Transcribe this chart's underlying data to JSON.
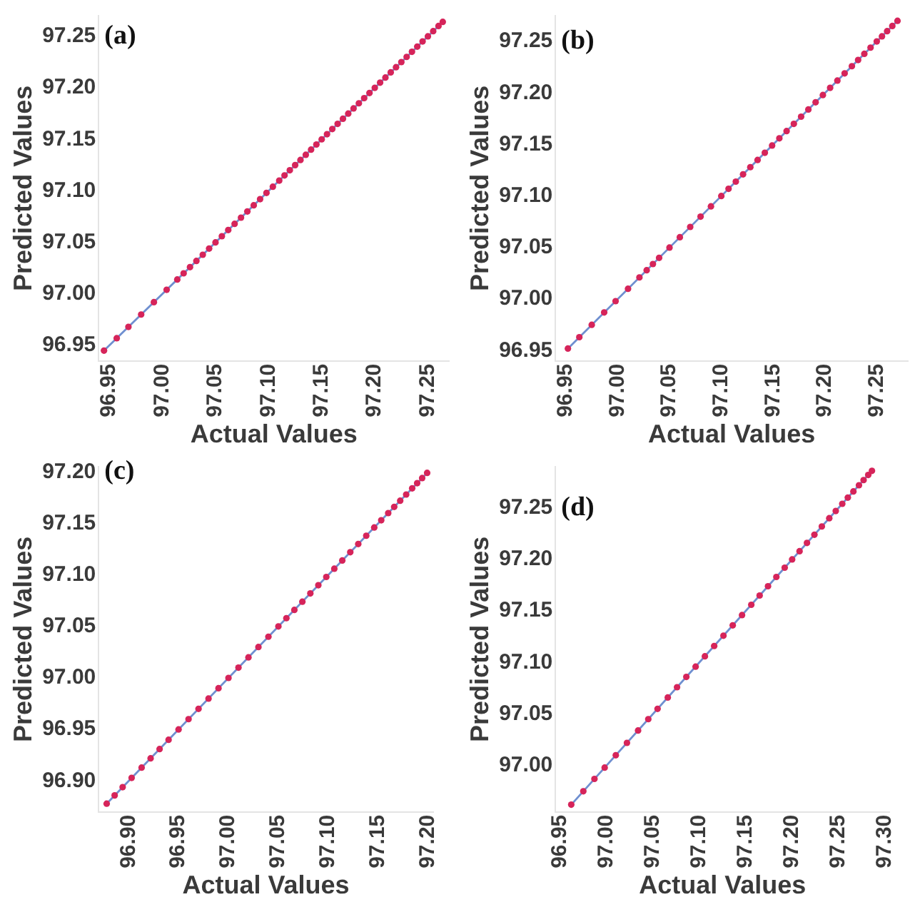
{
  "chart_data": [
    {
      "type": "scatter",
      "title": "(a)",
      "xlabel": "Actual Values",
      "ylabel": "Predicted Values",
      "xlim": [
        96.94,
        97.27
      ],
      "ylim": [
        96.935,
        97.27
      ],
      "xticks": [
        96.95,
        {
          "value": 97,
          "label": "97.00"
        },
        97.05,
        {
          "value": 97.1,
          "label": "97.10"
        },
        97.15,
        {
          "value": 97.2,
          "label": "97.20"
        },
        97.25
      ],
      "yticks": [
        96.95,
        {
          "value": 97,
          "label": "97.00"
        },
        97.05,
        {
          "value": 97.1,
          "label": "97.10"
        },
        97.15,
        {
          "value": 97.2,
          "label": "97.20"
        },
        97.25
      ],
      "grid": false,
      "legend": false,
      "series": [
        {
          "type": "line",
          "marker": "none",
          "color": "#6f8fd0",
          "x": [
            96.945,
            97.264
          ],
          "values": [
            96.945,
            97.264
          ]
        },
        {
          "marker": "circle",
          "color": "#d6245a",
          "x": [
            96.945,
            96.957,
            96.968,
            96.98,
            96.992,
            97.004,
            97.014,
            97.02,
            97.026,
            97.032,
            97.038,
            97.044,
            97.05,
            97.056,
            97.062,
            97.068,
            97.074,
            97.08,
            97.086,
            97.092,
            97.098,
            97.104,
            97.11,
            97.115,
            97.12,
            97.125,
            97.13,
            97.135,
            97.14,
            97.145,
            97.15,
            97.155,
            97.16,
            97.165,
            97.17,
            97.175,
            97.18,
            97.185,
            97.19,
            97.195,
            97.2,
            97.205,
            97.21,
            97.215,
            97.22,
            97.225,
            97.23,
            97.235,
            97.24,
            97.245,
            97.25,
            97.255,
            97.26,
            97.264
          ],
          "values": [
            96.945,
            96.957,
            96.968,
            96.98,
            96.992,
            97.004,
            97.014,
            97.02,
            97.026,
            97.032,
            97.038,
            97.044,
            97.05,
            97.056,
            97.062,
            97.068,
            97.074,
            97.08,
            97.086,
            97.092,
            97.098,
            97.104,
            97.11,
            97.115,
            97.12,
            97.125,
            97.13,
            97.135,
            97.14,
            97.145,
            97.15,
            97.155,
            97.16,
            97.165,
            97.17,
            97.175,
            97.18,
            97.185,
            97.19,
            97.195,
            97.2,
            97.205,
            97.21,
            97.215,
            97.22,
            97.225,
            97.23,
            97.235,
            97.24,
            97.245,
            97.25,
            97.255,
            97.26,
            97.264
          ]
        }
      ]
    },
    {
      "type": "scatter",
      "title": "(b)",
      "xlabel": "Actual Values",
      "ylabel": "Predicted Values",
      "xlim": [
        96.94,
        97.28
      ],
      "ylim": [
        96.94,
        97.275
      ],
      "xticks": [
        96.95,
        {
          "value": 97,
          "label": "97.00"
        },
        97.05,
        {
          "value": 97.1,
          "label": "97.10"
        },
        97.15,
        {
          "value": 97.2,
          "label": "97.20"
        },
        97.25
      ],
      "yticks": [
        96.95,
        {
          "value": 97,
          "label": "97.00"
        },
        97.05,
        {
          "value": 97.1,
          "label": "97.10"
        },
        97.15,
        {
          "value": 97.2,
          "label": "97.20"
        },
        97.25
      ],
      "grid": false,
      "legend": false,
      "series": [
        {
          "type": "line",
          "marker": "none",
          "color": "#6f8fd0",
          "x": [
            96.952,
            97.27
          ],
          "values": [
            96.952,
            97.27
          ]
        },
        {
          "marker": "circle",
          "color": "#d6245a",
          "x": [
            96.952,
            96.963,
            96.975,
            96.987,
            96.998,
            97.01,
            97.021,
            97.028,
            97.034,
            97.04,
            97.05,
            97.06,
            97.07,
            97.08,
            97.09,
            97.1,
            97.107,
            97.114,
            97.121,
            97.128,
            97.135,
            97.142,
            97.149,
            97.156,
            97.163,
            97.17,
            97.177,
            97.184,
            97.191,
            97.198,
            97.205,
            97.212,
            97.219,
            97.226,
            97.232,
            97.238,
            97.244,
            97.25,
            97.255,
            97.26,
            97.265,
            97.27
          ],
          "values": [
            96.952,
            96.963,
            96.975,
            96.987,
            96.998,
            97.01,
            97.021,
            97.028,
            97.034,
            97.04,
            97.05,
            97.06,
            97.07,
            97.08,
            97.09,
            97.1,
            97.107,
            97.114,
            97.121,
            97.128,
            97.135,
            97.142,
            97.149,
            97.156,
            97.163,
            97.17,
            97.177,
            97.184,
            97.191,
            97.198,
            97.205,
            97.212,
            97.219,
            97.226,
            97.232,
            97.238,
            97.244,
            97.25,
            97.255,
            97.26,
            97.265,
            97.27
          ]
        }
      ]
    },
    {
      "type": "scatter",
      "title": "(c)",
      "xlabel": "Actual Values",
      "ylabel": "Predicted Values",
      "xlim": [
        96.87,
        97.205
      ],
      "ylim": [
        96.87,
        97.205
      ],
      "xticks": [
        {
          "value": 96.9,
          "label": "96.90"
        },
        96.95,
        {
          "value": 97,
          "label": "97.00"
        },
        97.05,
        {
          "value": 97.1,
          "label": "97.10"
        },
        97.15,
        {
          "value": 97.2,
          "label": "97.20"
        }
      ],
      "yticks": [
        {
          "value": 96.9,
          "label": "96.90"
        },
        96.95,
        {
          "value": 97,
          "label": "97.00"
        },
        97.05,
        {
          "value": 97.1,
          "label": "97.10"
        },
        97.15,
        {
          "value": 97.2,
          "label": "97.20"
        }
      ],
      "grid": false,
      "legend": false,
      "series": [
        {
          "type": "line",
          "marker": "none",
          "color": "#6f8fd0",
          "x": [
            96.878,
            97.199
          ],
          "values": [
            96.878,
            97.199
          ]
        },
        {
          "marker": "circle",
          "color": "#d6245a",
          "x": [
            96.878,
            96.886,
            96.894,
            96.903,
            96.913,
            96.922,
            96.931,
            96.94,
            96.95,
            96.96,
            96.97,
            96.98,
            96.99,
            97,
            97.01,
            97.02,
            97.03,
            97.04,
            97.05,
            97.058,
            97.066,
            97.074,
            97.082,
            97.09,
            97.098,
            97.106,
            97.114,
            97.122,
            97.13,
            97.138,
            97.146,
            97.153,
            97.16,
            97.166,
            97.172,
            97.178,
            97.184,
            97.189,
            97.194,
            97.199
          ],
          "values": [
            96.878,
            96.886,
            96.894,
            96.903,
            96.913,
            96.922,
            96.931,
            96.94,
            96.95,
            96.96,
            96.97,
            96.98,
            96.99,
            97,
            97.01,
            97.02,
            97.03,
            97.04,
            97.05,
            97.058,
            97.066,
            97.074,
            97.082,
            97.09,
            97.098,
            97.106,
            97.114,
            97.122,
            97.13,
            97.138,
            97.146,
            97.153,
            97.16,
            97.166,
            97.172,
            97.178,
            97.184,
            97.189,
            97.194,
            97.199
          ]
        }
      ]
    },
    {
      "type": "scatter",
      "title": "(d)",
      "xlabel": "Actual Values",
      "ylabel": "Predicted Values",
      "xlim": [
        96.945,
        97.305
      ],
      "ylim": [
        96.955,
        97.29
      ],
      "xticks": [
        96.95,
        {
          "value": 97,
          "label": "97.00"
        },
        97.05,
        {
          "value": 97.1,
          "label": "97.10"
        },
        97.15,
        {
          "value": 97.2,
          "label": "97.20"
        },
        97.25,
        {
          "value": 97.3,
          "label": "97.30"
        }
      ],
      "yticks": [
        {
          "value": 97,
          "label": "97.00"
        },
        97.05,
        {
          "value": 97.1,
          "label": "97.10"
        },
        97.15,
        {
          "value": 97.2,
          "label": "97.20"
        },
        97.25
      ],
      "grid": false,
      "legend": false,
      "series": [
        {
          "type": "line",
          "marker": "none",
          "color": "#6f8fd0",
          "x": [
            96.962,
            97.286
          ],
          "values": [
            96.962,
            97.286
          ]
        },
        {
          "marker": "circle",
          "color": "#d6245a",
          "x": [
            96.962,
            96.975,
            96.987,
            96.998,
            97.01,
            97.022,
            97.034,
            97.045,
            97.055,
            97.066,
            97.076,
            97.086,
            97.096,
            97.106,
            97.116,
            97.126,
            97.136,
            97.146,
            97.156,
            97.165,
            97.174,
            97.183,
            97.192,
            97.2,
            97.208,
            97.216,
            97.224,
            97.232,
            97.24,
            97.247,
            97.254,
            97.26,
            97.266,
            97.272,
            97.277,
            97.282,
            97.286
          ],
          "values": [
            96.962,
            96.975,
            96.987,
            96.998,
            97.01,
            97.022,
            97.034,
            97.045,
            97.055,
            97.066,
            97.076,
            97.086,
            97.096,
            97.106,
            97.116,
            97.126,
            97.136,
            97.146,
            97.156,
            97.165,
            97.174,
            97.183,
            97.192,
            97.2,
            97.208,
            97.216,
            97.224,
            97.232,
            97.24,
            97.247,
            97.254,
            97.26,
            97.266,
            97.272,
            97.277,
            97.282,
            97.286
          ]
        }
      ]
    }
  ]
}
